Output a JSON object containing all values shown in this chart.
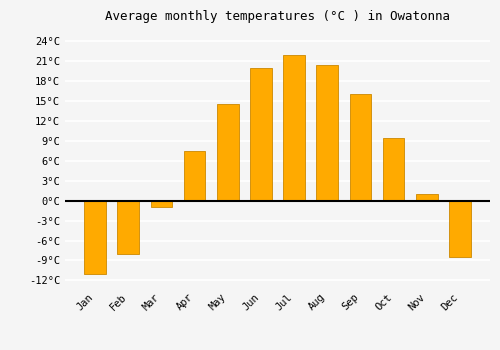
{
  "months": [
    "Jan",
    "Feb",
    "Mar",
    "Apr",
    "May",
    "Jun",
    "Jul",
    "Aug",
    "Sep",
    "Oct",
    "Nov",
    "Dec"
  ],
  "values": [
    -11,
    -8,
    -1,
    7.5,
    14.5,
    20,
    22,
    20.5,
    16,
    9.5,
    1,
    -8.5
  ],
  "bar_color": "#FFAA00",
  "bar_edge_color": "#CC8800",
  "title": "Average monthly temperatures (°C ) in Owatonna",
  "title_fontsize": 9,
  "ylim": [
    -13,
    26
  ],
  "yticks": [
    -12,
    -9,
    -6,
    -3,
    0,
    3,
    6,
    9,
    12,
    15,
    18,
    21,
    24
  ],
  "ytick_labels": [
    "-12°C",
    "-9°C",
    "-6°C",
    "-3°C",
    "0°C",
    "3°C",
    "6°C",
    "9°C",
    "12°C",
    "15°C",
    "18°C",
    "21°C",
    "24°C"
  ],
  "background_color": "#f5f5f5",
  "plot_bg_color": "#f5f5f5",
  "grid_color": "#ffffff",
  "bar_width": 0.65,
  "figsize": [
    5.0,
    3.5
  ],
  "dpi": 100
}
